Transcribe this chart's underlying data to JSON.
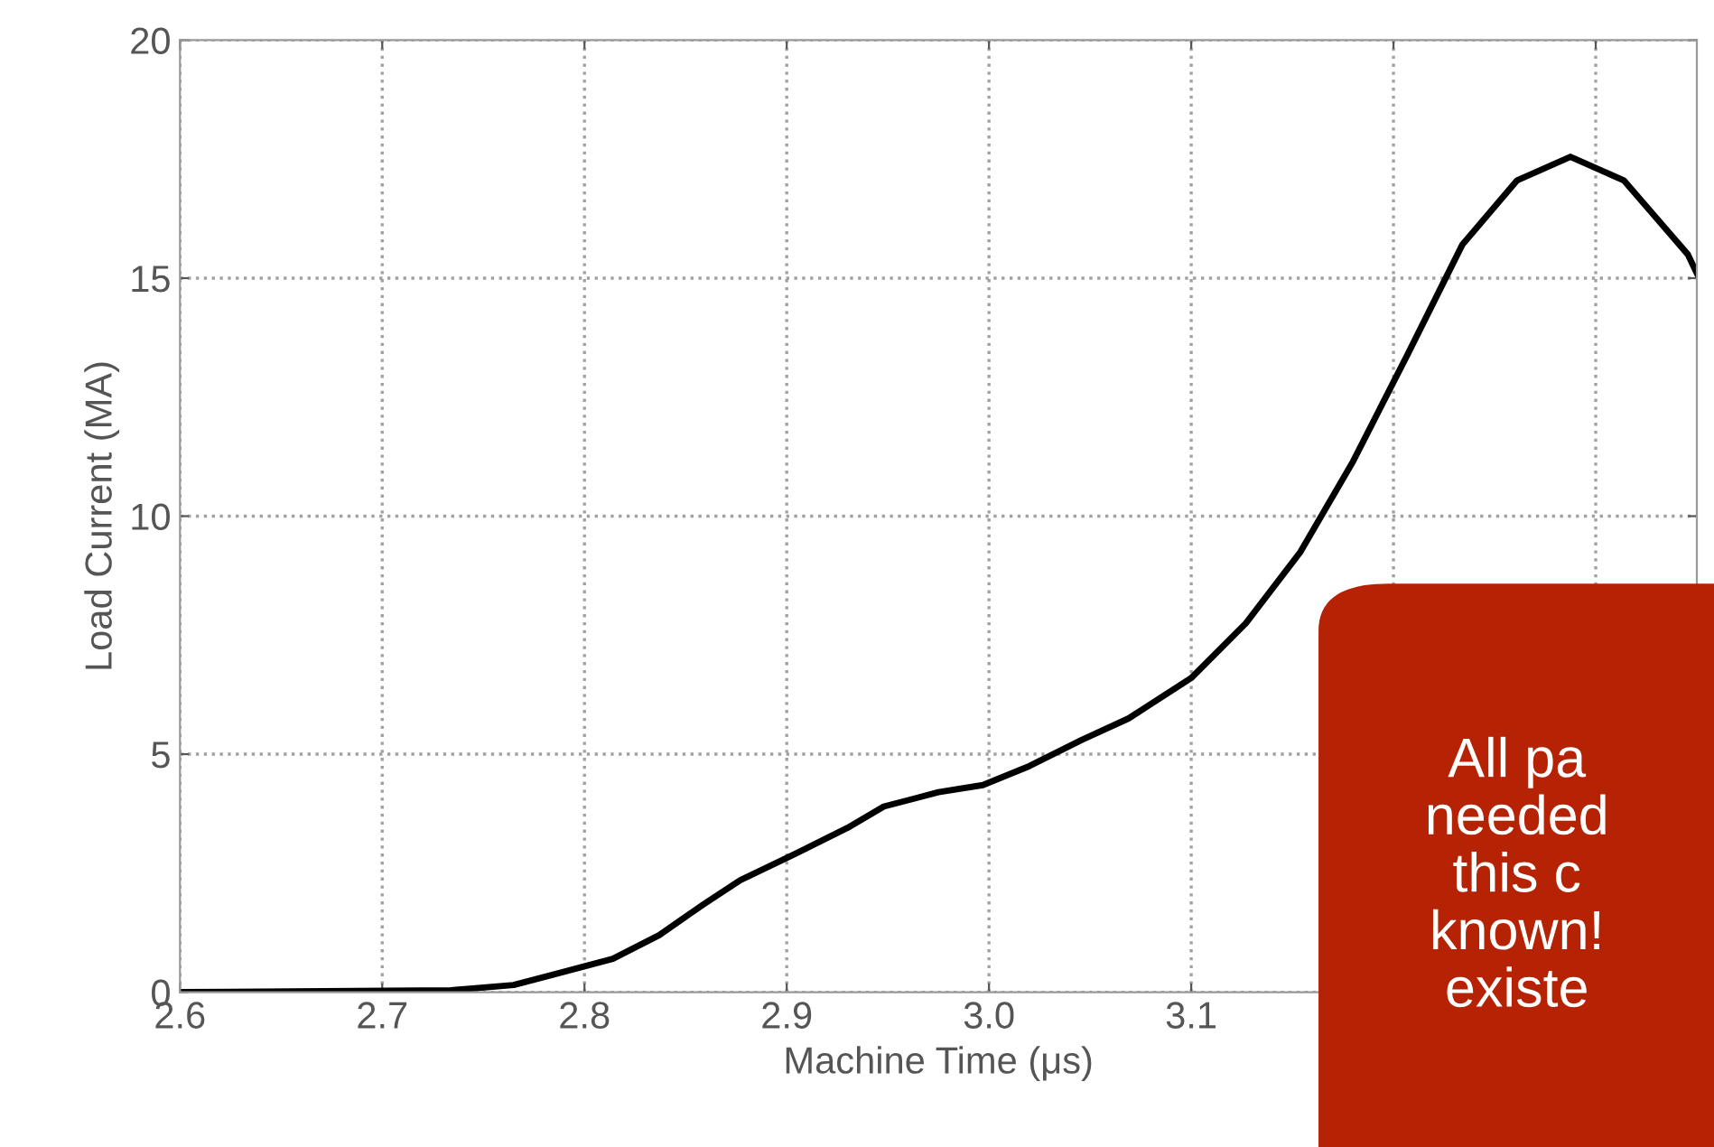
{
  "chart_data": {
    "type": "line",
    "xlabel": "Machine Time (μs)",
    "ylabel": "Load Current (MA)",
    "series": [
      {
        "color": "#000000",
        "x": [
          2.6,
          2.734,
          2.765,
          2.7875,
          2.814,
          2.837,
          2.859,
          2.877,
          2.904,
          2.93,
          2.948,
          2.975,
          2.997,
          3.02,
          3.046,
          3.069,
          3.1,
          3.127,
          3.154,
          3.18,
          3.207,
          3.234,
          3.261,
          3.2875,
          3.314,
          3.3455,
          3.35
        ],
        "values": [
          0,
          0.04,
          0.15,
          0.4,
          0.7,
          1.2,
          1.85,
          2.35,
          2.9,
          3.45,
          3.9,
          4.2,
          4.35,
          4.75,
          5.3,
          5.75,
          6.6,
          7.75,
          9.25,
          11.15,
          13.4,
          15.7,
          17.05,
          17.55,
          17.05,
          15.5,
          15.1
        ]
      }
    ],
    "xlim": [
      2.6,
      3.35
    ],
    "ylim": [
      0,
      20
    ],
    "xticks": [
      2.6,
      2.7,
      2.8,
      2.9,
      {
        "value": 3.0,
        "label": "3.0"
      },
      3.1,
      {
        "value": 3.2,
        "label": null
      },
      {
        "value": 3.3,
        "label": null
      }
    ],
    "yticks": [
      0,
      5,
      10,
      15,
      20
    ],
    "grid": true,
    "marker": "none",
    "line_style": "solid",
    "annotations": [
      "All pa\nneeded\nthis c\nknown!\nexiste"
    ]
  }
}
